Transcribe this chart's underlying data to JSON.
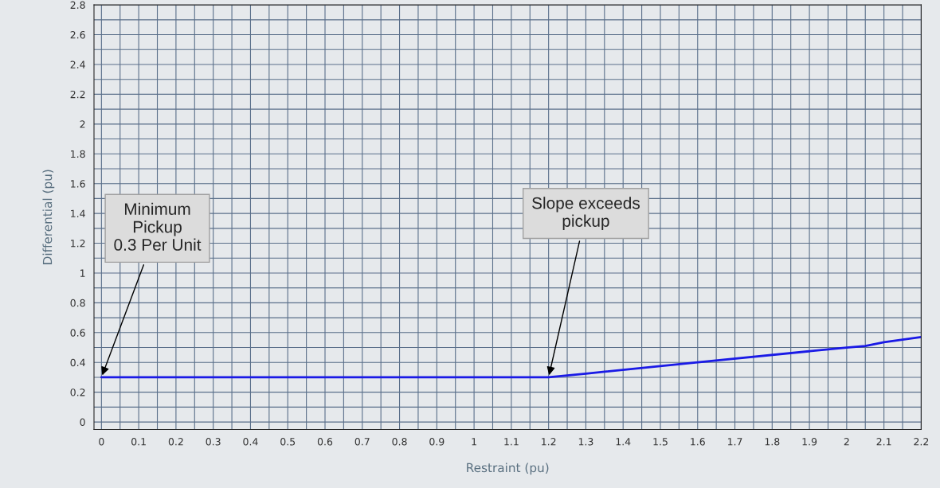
{
  "chart_data": {
    "type": "line",
    "xlabel": "Restraint (pu)",
    "ylabel": "Differential (pu)",
    "x": [
      0,
      1.2,
      1.3,
      1.6,
      2.0,
      2.05,
      2.1,
      2.2
    ],
    "series": [
      {
        "color": "#1a1ae6",
        "values": [
          0.3,
          0.3,
          0.325,
          0.4,
          0.5,
          0.51,
          0.535,
          0.57
        ]
      }
    ],
    "xlim": [
      -0.02,
      2.2
    ],
    "ylim": [
      -0.05,
      2.8
    ],
    "xticks": [
      0,
      {
        "value": 0.05,
        "label": null
      },
      0.1,
      {
        "value": 0.15,
        "label": null
      },
      0.2,
      {
        "value": 0.25,
        "label": null
      },
      0.3,
      {
        "value": 0.35,
        "label": null
      },
      0.4,
      {
        "value": 0.45,
        "label": null
      },
      0.5,
      {
        "value": 0.55,
        "label": null
      },
      0.6,
      {
        "value": 0.65,
        "label": null
      },
      0.7,
      {
        "value": 0.75,
        "label": null
      },
      0.8,
      {
        "value": 0.85,
        "label": null
      },
      0.9,
      {
        "value": 0.95,
        "label": null
      },
      1,
      {
        "value": 1.05,
        "label": null
      },
      1.1,
      {
        "value": 1.15,
        "label": null
      },
      1.2,
      {
        "value": 1.25,
        "label": null
      },
      1.3,
      {
        "value": 1.35,
        "label": null
      },
      1.4,
      {
        "value": 1.45,
        "label": null
      },
      1.5,
      {
        "value": 1.55,
        "label": null
      },
      1.6,
      {
        "value": 1.65,
        "label": null
      },
      1.7,
      {
        "value": 1.75,
        "label": null
      },
      1.8,
      {
        "value": 1.85,
        "label": null
      },
      1.9,
      {
        "value": 1.95,
        "label": null
      },
      2,
      {
        "value": 2.05,
        "label": null
      },
      2.1,
      {
        "value": 2.15,
        "label": null
      },
      2.2
    ],
    "yticks": [
      0,
      {
        "value": 0.1,
        "label": null
      },
      0.2,
      {
        "value": 0.3,
        "label": null
      },
      0.4,
      {
        "value": 0.5,
        "label": null
      },
      0.6,
      {
        "value": 0.7,
        "label": null
      },
      0.8,
      {
        "value": 0.9,
        "label": null
      },
      1,
      {
        "value": 1.1,
        "label": null
      },
      1.2,
      {
        "value": 1.3,
        "label": null
      },
      1.4,
      {
        "value": 1.5,
        "label": null
      },
      1.6,
      {
        "value": 1.7,
        "label": null
      },
      1.8,
      {
        "value": 1.9,
        "label": null
      },
      2,
      {
        "value": 2.1,
        "label": null
      },
      2.2,
      {
        "value": 2.3,
        "label": null
      },
      2.4,
      {
        "value": 2.5,
        "label": null
      },
      2.6,
      {
        "value": 2.7,
        "label": null
      },
      2.8
    ],
    "grid": true,
    "marker": "none",
    "line_style": "solid",
    "legend": false,
    "annotations": [
      {
        "text": "Minimum\nPickup\n0.3 Per Unit",
        "x": 0,
        "y": 0.3
      },
      {
        "text": "Slope exceeds\npickup",
        "x": 1.2,
        "y": 0.3
      }
    ]
  }
}
